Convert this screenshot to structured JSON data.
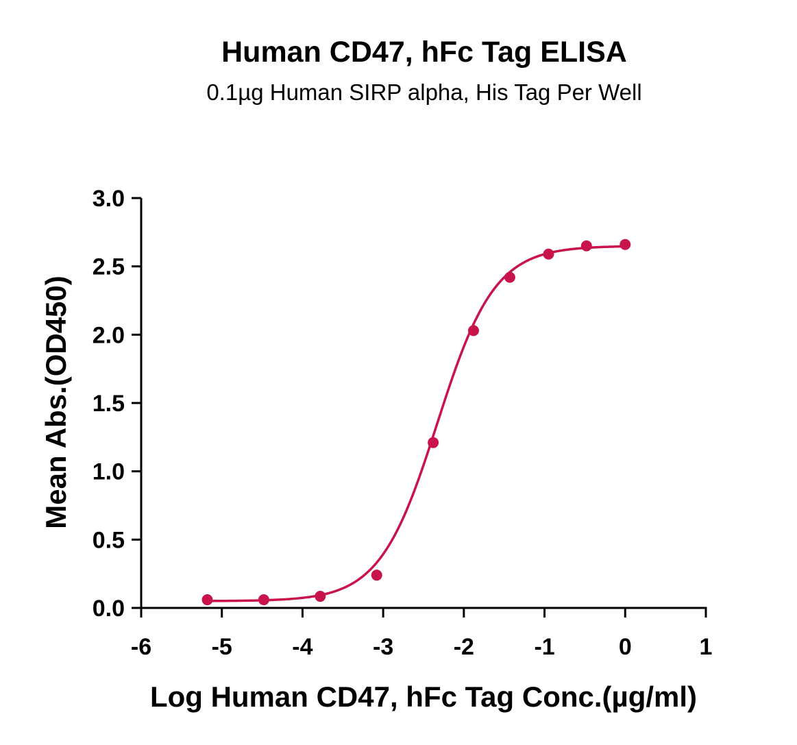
{
  "title": "Human CD47, hFc Tag ELISA",
  "subtitle": "0.1µg Human SIRP alpha, His Tag Per Well",
  "colors": {
    "series": "#c8144a",
    "axis": "#000000"
  },
  "chart_data": {
    "type": "scatter",
    "title": "Human CD47, hFc Tag ELISA",
    "subtitle": "0.1µg Human SIRP alpha, His Tag Per Well",
    "xlabel": "Log Human CD47, hFc Tag Conc.(µg/ml)",
    "ylabel": "Mean Abs.(OD450)",
    "xlim": [
      -6,
      1
    ],
    "ylim": [
      0,
      3
    ],
    "x_ticks": [
      -6,
      -5,
      -4,
      -3,
      -2,
      -1,
      0,
      1
    ],
    "x_tick_labels": [
      "-6",
      "-5",
      "-4",
      "-3",
      "-2",
      "-1",
      "0",
      "1"
    ],
    "y_ticks": [
      0,
      0.5,
      1,
      1.5,
      2,
      2.5,
      3
    ],
    "y_tick_labels": [
      "0.0",
      "0.5",
      "1.0",
      "1.5",
      "2.0",
      "2.5",
      "3.0"
    ],
    "grid": false,
    "legend": "none",
    "series": [
      {
        "x": [
          -5.18,
          -4.48,
          -3.78,
          -3.08,
          -2.38,
          -1.88,
          -1.43,
          -0.95,
          -0.48,
          0.0
        ],
        "y": [
          0.06,
          0.06,
          0.085,
          0.24,
          1.21,
          2.03,
          2.42,
          2.59,
          2.65,
          2.66
        ],
        "fit": "four-parameter logistic"
      }
    ]
  }
}
